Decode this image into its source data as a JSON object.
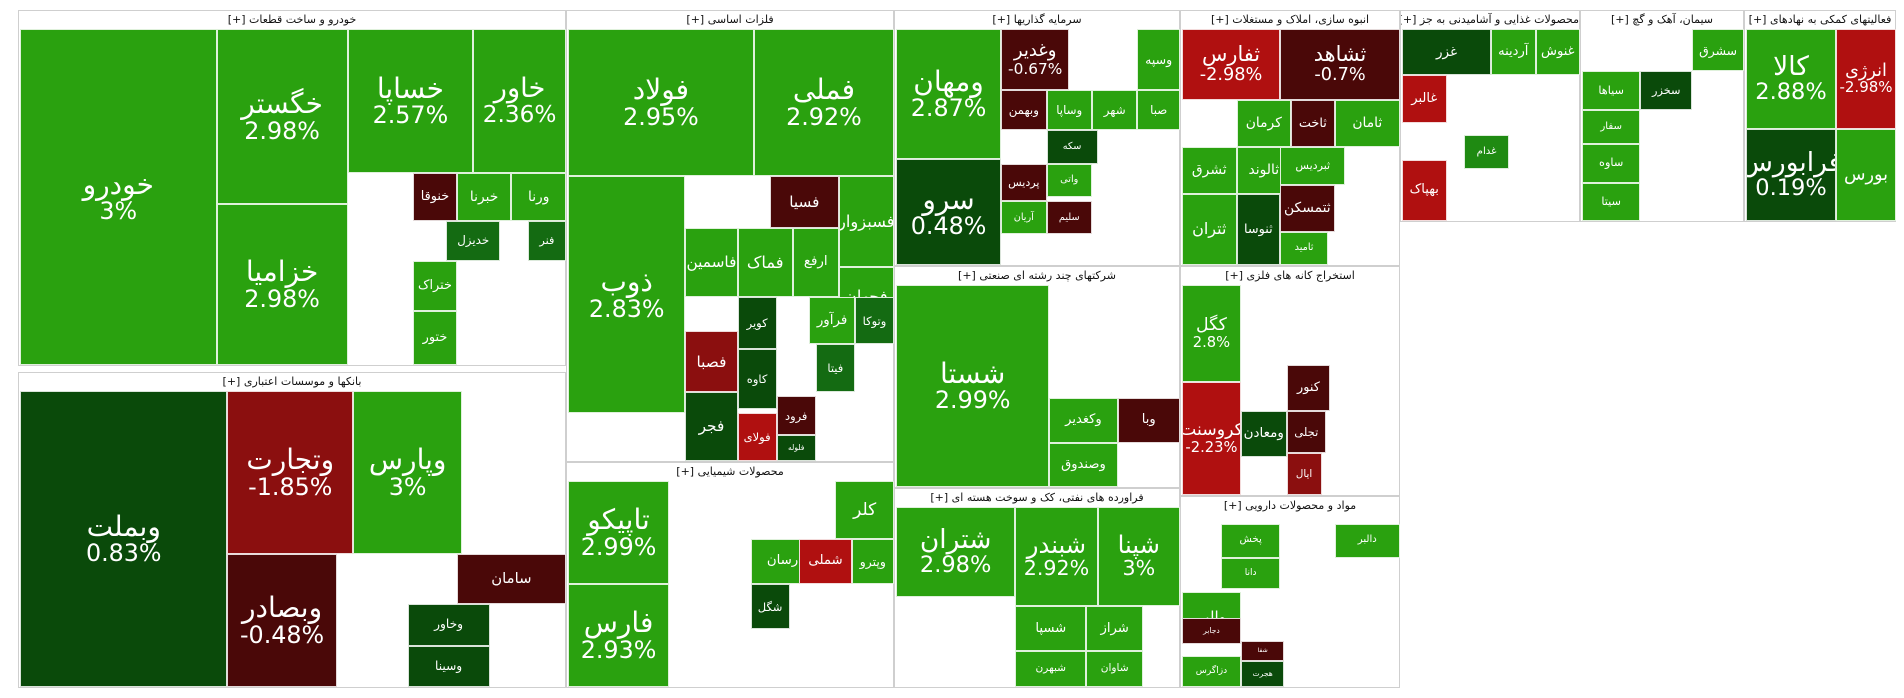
{
  "colors": {
    "bright_green": "#2aa10f",
    "green": "#1f8a12",
    "mid_green": "#146b12",
    "dark_green": "#0a4a0a",
    "bright_red": "#b01010",
    "red": "#8b0f0f",
    "dark_red": "#4a0808"
  },
  "chart_data": {
    "type": "treemap",
    "sectors": [
      {
        "name": "خودرو و ساخت قطعات [+]",
        "stocks": [
          {
            "symbol": "خودرو",
            "change": "3%"
          },
          {
            "symbol": "خگستر",
            "change": "2.98%"
          },
          {
            "symbol": "خساپا",
            "change": "2.57%"
          },
          {
            "symbol": "خاور",
            "change": "2.36%"
          },
          {
            "symbol": "خزامیا",
            "change": "2.98%"
          },
          {
            "symbol": "خنوقا",
            "change": ""
          },
          {
            "symbol": "خبرنا",
            "change": ""
          },
          {
            "symbol": "ورنا",
            "change": ""
          },
          {
            "symbol": "خدیزل",
            "change": ""
          },
          {
            "symbol": "فنر",
            "change": ""
          },
          {
            "symbol": "ختراک",
            "change": ""
          },
          {
            "symbol": "ختور",
            "change": ""
          }
        ]
      },
      {
        "name": "فلزات اساسی [+]",
        "stocks": [
          {
            "symbol": "فولاد",
            "change": "2.95%"
          },
          {
            "symbol": "فملی",
            "change": "2.92%"
          },
          {
            "symbol": "ذوب",
            "change": "2.83%"
          },
          {
            "symbol": "فسیا",
            "change": ""
          },
          {
            "symbol": "فسبزوار",
            "change": ""
          },
          {
            "symbol": "فجهان",
            "change": ""
          },
          {
            "symbol": "ارفع",
            "change": ""
          },
          {
            "symbol": "فماک",
            "change": ""
          },
          {
            "symbol": "فاسمین",
            "change": ""
          },
          {
            "symbol": "کویر",
            "change": ""
          },
          {
            "symbol": "فرآور",
            "change": ""
          },
          {
            "symbol": "وتوکا",
            "change": ""
          },
          {
            "symbol": "فصبا",
            "change": ""
          },
          {
            "symbol": "کاوه",
            "change": ""
          },
          {
            "symbol": "فیتا",
            "change": ""
          },
          {
            "symbol": "فجر",
            "change": ""
          },
          {
            "symbol": "فولای",
            "change": ""
          },
          {
            "symbol": "فرود",
            "change": ""
          },
          {
            "symbol": "فلوله",
            "change": ""
          }
        ]
      },
      {
        "name": "سرمایه گذاریها [+]",
        "stocks": [
          {
            "symbol": "ومهان",
            "change": "2.87%"
          },
          {
            "symbol": "وسپه",
            "change": ""
          },
          {
            "symbol": "وبهمن",
            "change": ""
          },
          {
            "symbol": "وساپا",
            "change": ""
          },
          {
            "symbol": "شهر",
            "change": ""
          },
          {
            "symbol": "صبا",
            "change": ""
          },
          {
            "symbol": "سکه",
            "change": ""
          },
          {
            "symbol": "پردیس",
            "change": ""
          },
          {
            "symbol": "واتی",
            "change": ""
          },
          {
            "symbol": "آریان",
            "change": ""
          },
          {
            "symbol": "سلیم",
            "change": ""
          },
          {
            "symbol": "وغدیر",
            "change": "-0.67%"
          },
          {
            "symbol": "سرو",
            "change": "0.48%"
          }
        ]
      },
      {
        "name": "انبوه سازی، املاک و مستغلات [+]",
        "stocks": [
          {
            "symbol": "ثفارس",
            "change": "-2.98%"
          },
          {
            "symbol": "ثشاهد",
            "change": "-0.7%"
          },
          {
            "symbol": "کرمان",
            "change": ""
          },
          {
            "symbol": "ثاخت",
            "change": ""
          },
          {
            "symbol": "ثامان",
            "change": ""
          },
          {
            "symbol": "ثشرق",
            "change": ""
          },
          {
            "symbol": "ثالوند",
            "change": ""
          },
          {
            "symbol": "ثتران",
            "change": ""
          },
          {
            "symbol": "ثنوسا",
            "change": ""
          },
          {
            "symbol": "ثامید",
            "change": ""
          },
          {
            "symbol": "ثتمسکن",
            "change": ""
          },
          {
            "symbol": "ثبردیس",
            "change": ""
          }
        ]
      },
      {
        "name": "محصولات غذایی و آشامیدنی به جز [+]",
        "stocks": [
          {
            "symbol": "غزر",
            "change": ""
          },
          {
            "symbol": "آردینه",
            "change": ""
          },
          {
            "symbol": "غنوش",
            "change": ""
          },
          {
            "symbol": "غالبر",
            "change": ""
          },
          {
            "symbol": "بهپاک",
            "change": ""
          },
          {
            "symbol": "غدام",
            "change": ""
          }
        ]
      },
      {
        "name": "سیمان، آهک و گچ [+]",
        "stocks": [
          {
            "symbol": "سشرق",
            "change": ""
          },
          {
            "symbol": "سیاها",
            "change": ""
          },
          {
            "symbol": "سخزر",
            "change": ""
          },
          {
            "symbol": "سفار",
            "change": ""
          },
          {
            "symbol": "ساوه",
            "change": ""
          },
          {
            "symbol": "سیتا",
            "change": ""
          }
        ]
      },
      {
        "name": "فعالیتهای کمکی به نهادهای [+]",
        "stocks": [
          {
            "symbol": "کالا",
            "change": "2.88%"
          },
          {
            "symbol": "انرژی",
            "change": "-2.98%"
          },
          {
            "symbol": "بورس",
            "change": ""
          },
          {
            "symbol": "فرابورس",
            "change": "0.19%"
          }
        ]
      },
      {
        "name": "بانکها و موسسات اعتباری [+]",
        "stocks": [
          {
            "symbol": "وبملت",
            "change": "0.83%"
          },
          {
            "symbol": "وتجارت",
            "change": "-1.85%"
          },
          {
            "symbol": "وپارس",
            "change": "3%"
          },
          {
            "symbol": "وبصادر",
            "change": "-0.48%"
          },
          {
            "symbol": "سامان",
            "change": ""
          },
          {
            "symbol": "وخاور",
            "change": ""
          },
          {
            "symbol": "وسینا",
            "change": ""
          }
        ]
      },
      {
        "name": "محصولات شیمیایی [+]",
        "stocks": [
          {
            "symbol": "تاپیکو",
            "change": "2.99%"
          },
          {
            "symbol": "فارس",
            "change": "2.93%"
          },
          {
            "symbol": "کلر",
            "change": ""
          },
          {
            "symbol": "پارسان",
            "change": ""
          },
          {
            "symbol": "شملی",
            "change": ""
          },
          {
            "symbol": "وپترو",
            "change": ""
          },
          {
            "symbol": "شگل",
            "change": ""
          }
        ]
      },
      {
        "name": "شرکتهای چند رشته ای صنعتی [+]",
        "stocks": [
          {
            "symbol": "شستا",
            "change": "2.99%"
          },
          {
            "symbol": "وکغدیر",
            "change": ""
          },
          {
            "symbol": "وصندوق",
            "change": ""
          },
          {
            "symbol": "وبا",
            "change": ""
          }
        ]
      },
      {
        "name": "فراورده های نفتی، کک و سوخت هسته ای [+]",
        "stocks": [
          {
            "symbol": "شتران",
            "change": "2.98%"
          },
          {
            "symbol": "شبندر",
            "change": "2.92%"
          },
          {
            "symbol": "شپنا",
            "change": "3%"
          },
          {
            "symbol": "شسپا",
            "change": ""
          },
          {
            "symbol": "شراز",
            "change": ""
          },
          {
            "symbol": "شبهرن",
            "change": ""
          },
          {
            "symbol": "شاوان",
            "change": ""
          }
        ]
      },
      {
        "name": "استخراج کانه های فلزی [+]",
        "stocks": [
          {
            "symbol": "کگل",
            "change": "2.8%"
          },
          {
            "symbol": "کروسنت",
            "change": "-2.23%"
          },
          {
            "symbol": "کنور",
            "change": ""
          },
          {
            "symbol": "تجلی",
            "change": ""
          },
          {
            "symbol": "ومعادن",
            "change": ""
          },
          {
            "symbol": "ایال",
            "change": ""
          }
        ]
      },
      {
        "name": "مواد و محصولات دارویی [+]",
        "stocks": [
          {
            "symbol": "پخش",
            "change": ""
          },
          {
            "symbol": "دالبر",
            "change": ""
          },
          {
            "symbol": "دانا",
            "change": ""
          },
          {
            "symbol": "والبر",
            "change": ""
          },
          {
            "symbol": "دجابر",
            "change": ""
          },
          {
            "symbol": "شفا",
            "change": ""
          },
          {
            "symbol": "دزاگرس",
            "change": ""
          },
          {
            "symbol": "هجرت",
            "change": ""
          }
        ]
      }
    ]
  }
}
